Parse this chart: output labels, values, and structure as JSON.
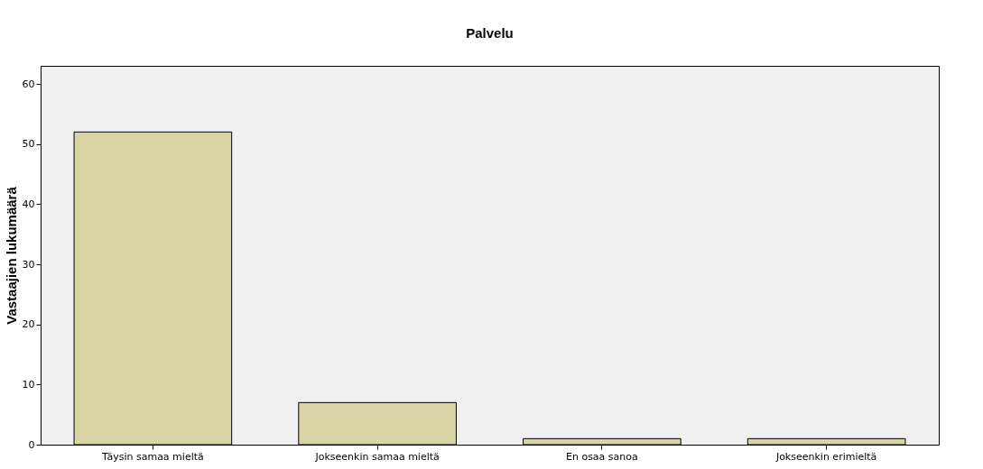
{
  "chart_data": {
    "type": "bar",
    "title": "Palvelu",
    "ylabel": "Vastaajien lukumäärä",
    "categories": [
      "Täysin samaa mieltä",
      "Jokseenkin samaa mieltä",
      "En osaa sanoa",
      "Jokseenkin erimieltä"
    ],
    "values": [
      52,
      7,
      1,
      1
    ],
    "color": "#d9d4a4",
    "ylim": [
      0,
      63
    ],
    "yticks": [
      0,
      10,
      20,
      30,
      40,
      50,
      60
    ],
    "grid": false
  }
}
